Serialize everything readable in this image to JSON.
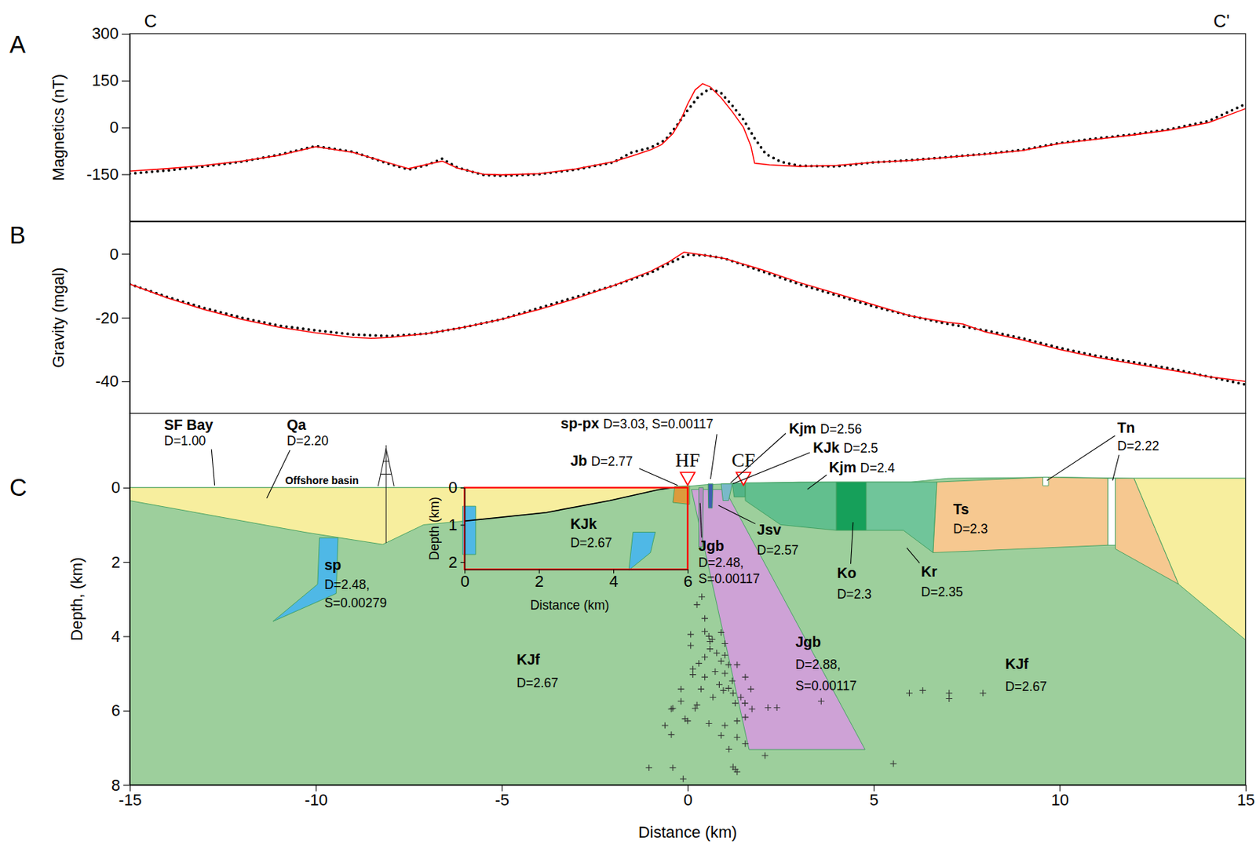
{
  "profile": {
    "start": "C",
    "end": "C'"
  },
  "chart_data": [
    {
      "type": "line",
      "panel_label": "A",
      "y_label": "Magnetics (nT)",
      "xlim": [
        -15,
        15
      ],
      "ylim": [
        -300,
        300
      ],
      "yticks": [
        300,
        150,
        0,
        -150
      ],
      "tick_labels": "y",
      "series": [
        {
          "type": "line",
          "line_style": "dotted",
          "color": "#000000",
          "x": [
            -15,
            -14,
            -13,
            -12,
            -11,
            -10,
            -9,
            -8,
            -7.5,
            -7,
            -6.6,
            -6.2,
            -5.5,
            -5,
            -4,
            -3,
            -2,
            -1.5,
            -1,
            -0.6,
            -0.3,
            0,
            0.3,
            0.6,
            0.9,
            1.2,
            1.5,
            1.8,
            2.1,
            2.5,
            3,
            4,
            5,
            6,
            7,
            8,
            9,
            10,
            11,
            12,
            13,
            14,
            15
          ],
          "values": [
            -148,
            -138,
            -125,
            -110,
            -88,
            -60,
            -78,
            -118,
            -135,
            -120,
            -100,
            -128,
            -152,
            -155,
            -150,
            -135,
            -112,
            -80,
            -65,
            -40,
            5,
            55,
            100,
            125,
            110,
            70,
            25,
            -35,
            -85,
            -110,
            -123,
            -125,
            -112,
            -105,
            -95,
            -85,
            -72,
            -50,
            -35,
            -22,
            -5,
            20,
            75
          ]
        },
        {
          "type": "line",
          "line_style": "solid",
          "color": "#ff0000",
          "x": [
            -15,
            -14,
            -13,
            -12,
            -11,
            -10,
            -9,
            -8,
            -7.5,
            -7,
            -6.6,
            -6.2,
            -5.5,
            -5,
            -4,
            -3,
            -2,
            -1.5,
            -1,
            -0.7,
            -0.4,
            -0.2,
            0,
            0.2,
            0.4,
            0.6,
            0.9,
            1.2,
            1.5,
            1.7,
            1.8,
            2.2,
            3,
            4,
            5,
            6,
            7,
            8,
            9,
            10,
            11,
            12,
            13,
            14,
            15
          ],
          "values": [
            -140,
            -132,
            -122,
            -108,
            -90,
            -62,
            -80,
            -115,
            -132,
            -118,
            -108,
            -130,
            -150,
            -152,
            -148,
            -133,
            -110,
            -92,
            -72,
            -55,
            -20,
            20,
            75,
            120,
            140,
            130,
            95,
            50,
            0,
            -60,
            -115,
            -120,
            -125,
            -122,
            -112,
            -106,
            -96,
            -86,
            -74,
            -52,
            -38,
            -24,
            -8,
            15,
            60
          ]
        }
      ]
    },
    {
      "type": "line",
      "panel_label": "B",
      "y_label": "Gravity (mgal)",
      "xlim": [
        -15,
        15
      ],
      "ylim": [
        -50,
        10
      ],
      "yticks": [
        0,
        -20,
        -40
      ],
      "tick_labels": "y",
      "series": [
        {
          "type": "line",
          "line_style": "dotted",
          "color": "#000000",
          "x": [
            -15,
            -14,
            -13,
            -12,
            -11,
            -10,
            -9,
            -8,
            -7,
            -6,
            -5,
            -4,
            -3,
            -2,
            -1,
            -0.5,
            0,
            0.5,
            1,
            2,
            3,
            4,
            5,
            6,
            7,
            8,
            9,
            10,
            11,
            12,
            13,
            14,
            15
          ],
          "values": [
            -9.5,
            -13.5,
            -17,
            -20,
            -22.5,
            -24,
            -25.3,
            -25.8,
            -25,
            -23,
            -20.5,
            -17,
            -13.5,
            -10,
            -6,
            -3,
            -0.3,
            -0.5,
            -1.5,
            -5.5,
            -9.5,
            -13,
            -16.5,
            -19.5,
            -22,
            -24,
            -26.5,
            -29.5,
            -32,
            -34,
            -36,
            -38.5,
            -41
          ]
        },
        {
          "type": "line",
          "line_style": "solid",
          "color": "#ff0000",
          "x": [
            -15,
            -14,
            -13,
            -12,
            -11,
            -10,
            -9,
            -8.5,
            -8,
            -7,
            -6,
            -5,
            -4,
            -3,
            -2,
            -1,
            -0.5,
            -0.1,
            0.5,
            1,
            2,
            3,
            4,
            5,
            6,
            6.5,
            7,
            7.4,
            8,
            9,
            10,
            11,
            12,
            13,
            14,
            15
          ],
          "values": [
            -9.5,
            -13.8,
            -17.5,
            -20.5,
            -23,
            -24.8,
            -26.2,
            -26.5,
            -26.2,
            -25,
            -23,
            -20.5,
            -17.5,
            -14,
            -10,
            -5.5,
            -2.5,
            0.5,
            -0.5,
            -1.5,
            -5,
            -9,
            -12.5,
            -16,
            -19.5,
            -20.5,
            -21.5,
            -22,
            -24.5,
            -27,
            -30,
            -32.5,
            -34.5,
            -36.5,
            -38.5,
            -40
          ]
        }
      ]
    },
    {
      "type": "cross_section",
      "panel_label": "C",
      "x_label": "Distance (km)",
      "y_label": "Depth, (km)",
      "xlim": [
        -15,
        15
      ],
      "ylim": [
        -2,
        8
      ],
      "xticks": [
        -15,
        -10,
        -5,
        0,
        5,
        10,
        15
      ],
      "yticks": [
        0,
        2,
        4,
        6,
        8
      ],
      "polygons": [
        {
          "color": "#9dcf9c",
          "x": [
            -15,
            -0.4,
            0.5,
            1.0,
            3,
            6,
            7,
            10,
            12,
            15,
            15,
            -15
          ],
          "depth": [
            0,
            0,
            -0.08,
            -0.1,
            -0.15,
            -0.15,
            -0.25,
            -0.28,
            -0.25,
            -0.25,
            8,
            8
          ]
        },
        {
          "color": "#f7ee9e",
          "x": [
            -15,
            -0.4,
            -0.8,
            -2.1,
            -3.8,
            -6.0,
            -7.1,
            -8.2,
            -10.3,
            -15
          ],
          "depth": [
            0,
            0,
            0.06,
            0.35,
            0.67,
            0.9,
            1.0,
            1.53,
            1.2,
            0.35
          ]
        },
        {
          "color": "#4fb8e6",
          "x": [
            -9.9,
            -9.4,
            -9.45,
            -11.15,
            -9.95
          ],
          "depth": [
            1.35,
            1.35,
            2.85,
            3.6,
            2.6
          ]
        },
        {
          "color": "#4fb8e6",
          "x": [
            -6.05,
            -5.7,
            -5.7,
            -6.05
          ],
          "depth": [
            0.5,
            0.5,
            1.8,
            1.8
          ]
        },
        {
          "color": "#4fb8e6",
          "x": [
            -1.47,
            -0.87,
            -1.0,
            -1.58
          ],
          "depth": [
            1.2,
            1.2,
            1.75,
            2.22
          ]
        },
        {
          "color": "#cea2d6",
          "x": [
            0.1,
            1.0,
            4.77,
            1.65
          ],
          "depth": [
            0.05,
            0.05,
            7.05,
            7.05
          ]
        },
        {
          "color": "#dc9a3c",
          "x": [
            -0.35,
            0.05,
            0.05,
            -0.4
          ],
          "depth": [
            -0.03,
            -0.05,
            0.45,
            0.4
          ]
        },
        {
          "color": "#b98ac6",
          "x": [
            0.3,
            0.42,
            0.4,
            0.3
          ],
          "depth": [
            0,
            0,
            1.6,
            1.6
          ]
        },
        {
          "color": "#3d5fb0",
          "x": [
            0.55,
            0.68,
            0.66,
            0.56
          ],
          "depth": [
            -0.1,
            -0.1,
            0.55,
            0.55
          ]
        },
        {
          "color": "#79b9c9",
          "x": [
            0.9,
            1.2,
            1.1,
            0.95
          ],
          "depth": [
            -0.1,
            -0.1,
            0.35,
            0.35
          ]
        },
        {
          "color": "#53b487",
          "x": [
            1.2,
            1.55,
            1.55,
            1.25
          ],
          "depth": [
            -0.12,
            -0.12,
            0.25,
            0.25
          ]
        },
        {
          "color": "#62bf8e",
          "x": [
            1.55,
            4.0,
            4.0,
            2.5,
            1.55
          ],
          "depth": [
            -0.13,
            -0.15,
            1.15,
            1.0,
            0.35
          ]
        },
        {
          "color": "#16a05a",
          "x": [
            4.0,
            4.8,
            4.8,
            4.0
          ],
          "depth": [
            -0.15,
            -0.15,
            1.15,
            1.15
          ]
        },
        {
          "color": "#70c59a",
          "x": [
            4.8,
            6.7,
            6.6,
            5.8,
            4.8
          ],
          "depth": [
            -0.15,
            -0.15,
            1.75,
            1.15,
            1.15
          ]
        },
        {
          "color": "#f6c890",
          "x": [
            6.7,
            9.6,
            11.3,
            11.3,
            6.6
          ],
          "depth": [
            -0.15,
            -0.28,
            -0.25,
            1.55,
            1.75
          ]
        },
        {
          "color": "#ffffff",
          "x": [
            9.55,
            9.7,
            9.7,
            9.55
          ],
          "depth": [
            -0.28,
            -0.28,
            -0.05,
            -0.05
          ]
        },
        {
          "color": "#ffffff",
          "x": [
            11.3,
            11.5,
            11.5,
            11.3
          ],
          "depth": [
            -0.25,
            -0.25,
            1.55,
            1.55
          ]
        },
        {
          "color": "#f6c890",
          "x": [
            11.5,
            12.0,
            13.2,
            11.5
          ],
          "depth": [
            -0.25,
            -0.25,
            2.6,
            1.65
          ]
        },
        {
          "color": "#f7ee9e",
          "x": [
            12.0,
            15,
            15,
            13.2
          ],
          "depth": [
            -0.25,
            -0.25,
            4.1,
            2.6
          ]
        }
      ],
      "labels": [
        {
          "lines": [
            "SF Bay",
            "D=1.00"
          ]
        },
        {
          "lines": [
            "Qa",
            "D=2.20"
          ]
        },
        {
          "lines": [
            "Offshore basin"
          ]
        },
        {
          "lines": [
            "sp-px",
            "D=3.03, S=0.00117"
          ]
        },
        {
          "lines": [
            "Jb",
            "D=2.77"
          ]
        },
        {
          "lines": [
            "Kjm",
            "D=2.56"
          ]
        },
        {
          "lines": [
            "KJk",
            "D=2.5"
          ]
        },
        {
          "lines": [
            "Kjm",
            "D=2.4"
          ]
        },
        {
          "lines": [
            "KJk",
            "D=2.67"
          ]
        },
        {
          "lines": [
            "Jgb",
            "D=2.48,",
            "S=0.00117"
          ]
        },
        {
          "lines": [
            "Jsv",
            "D=2.57"
          ]
        },
        {
          "lines": [
            "Ko",
            "D=2.3"
          ]
        },
        {
          "lines": [
            "Kr",
            "D=2.35"
          ]
        },
        {
          "lines": [
            "Ts",
            "D=2.3"
          ]
        },
        {
          "lines": [
            "Tn",
            "D=2.22"
          ]
        },
        {
          "lines": [
            "sp",
            "D=2.48,",
            "S=0.00279"
          ]
        },
        {
          "lines": [
            "KJf",
            "D=2.67"
          ]
        },
        {
          "lines": [
            "Jgb",
            "D=2.88,",
            "S=0.00117"
          ]
        },
        {
          "lines": [
            "KJf",
            "D=2.67"
          ]
        }
      ],
      "faults": [
        {
          "label": "HF",
          "x": 0
        },
        {
          "label": "CF",
          "x": 1.5
        }
      ],
      "earthquakes": {
        "marker": "plus",
        "color": "#333333",
        "x": [
          0.38,
          0.25,
          0.46,
          0.46,
          0.08,
          0.9,
          0.57,
          0.66,
          0.6,
          1.0,
          0.08,
          0.6,
          0.78,
          1.0,
          0.46,
          0.9,
          0.3,
          1.1,
          1.33,
          0.14,
          0.74,
          1.0,
          0.14,
          0.46,
          1.55,
          1.2,
          0.85,
          1.1,
          0.36,
          -0.18,
          1.7,
          0.96,
          1.22,
          1.43,
          0.68,
          -0.18,
          1.54,
          1.28,
          0.25,
          0.2,
          -0.4,
          -0.44,
          1.73,
          2.16,
          2.4,
          1.55,
          -0.07,
          1.33,
          0,
          0.57,
          1.0,
          -0.61,
          -0.44,
          0.9,
          1.33,
          1.55,
          1.11,
          2.08,
          -1.04,
          -0.4,
          1.22,
          1.28,
          1.33,
          -0.12,
          3.59,
          5.96,
          6.32,
          7.03,
          7.03,
          7.94,
          5.53
        ],
        "depth": [
          2.94,
          3.15,
          3.52,
          3.87,
          3.95,
          3.9,
          4.0,
          4.08,
          4.14,
          4.2,
          4.25,
          4.34,
          4.45,
          4.51,
          4.56,
          4.67,
          4.73,
          4.77,
          4.77,
          4.88,
          4.95,
          5.0,
          5.03,
          5.1,
          5.1,
          5.2,
          5.3,
          5.4,
          5.42,
          5.42,
          5.42,
          5.46,
          5.53,
          5.64,
          5.64,
          5.75,
          5.8,
          5.8,
          5.85,
          5.94,
          5.94,
          5.96,
          5.96,
          5.92,
          5.92,
          6.18,
          6.22,
          6.28,
          6.28,
          6.35,
          6.4,
          6.4,
          6.65,
          6.67,
          6.72,
          6.89,
          7.04,
          7.21,
          7.54,
          7.54,
          7.52,
          7.58,
          7.65,
          7.84,
          5.75,
          5.53,
          5.46,
          5.53,
          5.68,
          5.53,
          7.43
        ]
      },
      "inset": {
        "x_label": "Distance (km)",
        "y_label": "Depth (km)",
        "color": "#ff0000",
        "xlim": [
          0,
          6
        ],
        "ylim": [
          0,
          2.2
        ],
        "xticks": [
          0,
          2,
          4,
          6
        ],
        "yticks": [
          0,
          1,
          2
        ],
        "region_x": [
          -6,
          0
        ],
        "region_depth": [
          0,
          2.2
        ],
        "boundary": {
          "x": [
            0,
            2.2,
            3.9,
            5.2,
            5.6
          ],
          "depth": [
            0.9,
            0.67,
            0.35,
            0.06,
            0
          ]
        }
      }
    }
  ]
}
